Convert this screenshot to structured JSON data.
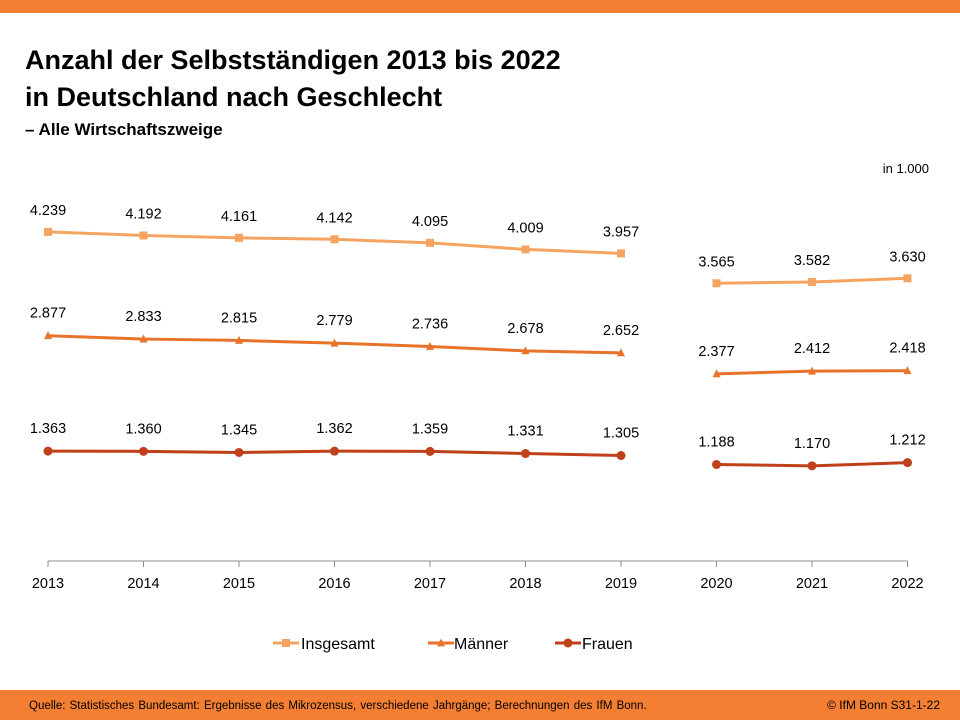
{
  "header": {
    "title_line1": "Anzahl der Selbstständigen 2013 bis 2022",
    "title_line2": "in Deutschland nach Geschlecht",
    "subtitle": "– Alle Wirtschaftszweige",
    "unit": "in 1.000"
  },
  "footer": {
    "source": "Quelle: Statistisches Bundesamt: Ergebnisse des Mikrozensus, verschiedene Jahrgänge; Berechnungen des IfM Bonn.",
    "copyright": "© IfM Bonn S31-1-22"
  },
  "colors": {
    "accent": "#f47f32",
    "insgesamt": "#f4a460",
    "maenner": "#e8732a",
    "frauen": "#c0401a",
    "axis": "#8c8c8c"
  },
  "chart_data": {
    "type": "line",
    "categories": [
      "2013",
      "2014",
      "2015",
      "2016",
      "2017",
      "2018",
      "2019",
      "2020",
      "2021",
      "2022"
    ],
    "break_after": "2019",
    "ylim": [
      0,
      4500
    ],
    "grid": false,
    "legend_position": "bottom-center",
    "series": [
      {
        "name": "Insgesamt",
        "marker": "square",
        "values": [
          4239,
          4192,
          4161,
          4142,
          4095,
          4009,
          3957,
          3565,
          3582,
          3630
        ],
        "labels": [
          "4.239",
          "4.192",
          "4.161",
          "4.142",
          "4.095",
          "4.009",
          "3.957",
          "3.565",
          "3.582",
          "3.630"
        ]
      },
      {
        "name": "Männer",
        "marker": "triangle",
        "values": [
          2877,
          2833,
          2815,
          2779,
          2736,
          2678,
          2652,
          2377,
          2412,
          2418
        ],
        "labels": [
          "2.877",
          "2.833",
          "2.815",
          "2.779",
          "2.736",
          "2.678",
          "2.652",
          "2.377",
          "2.412",
          "2.418"
        ]
      },
      {
        "name": "Frauen",
        "marker": "circle",
        "values": [
          1363,
          1360,
          1345,
          1362,
          1359,
          1331,
          1305,
          1188,
          1170,
          1212
        ],
        "labels": [
          "1.363",
          "1.360",
          "1.345",
          "1.362",
          "1.359",
          "1.331",
          "1.305",
          "1.188",
          "1.170",
          "1.212"
        ]
      }
    ]
  }
}
